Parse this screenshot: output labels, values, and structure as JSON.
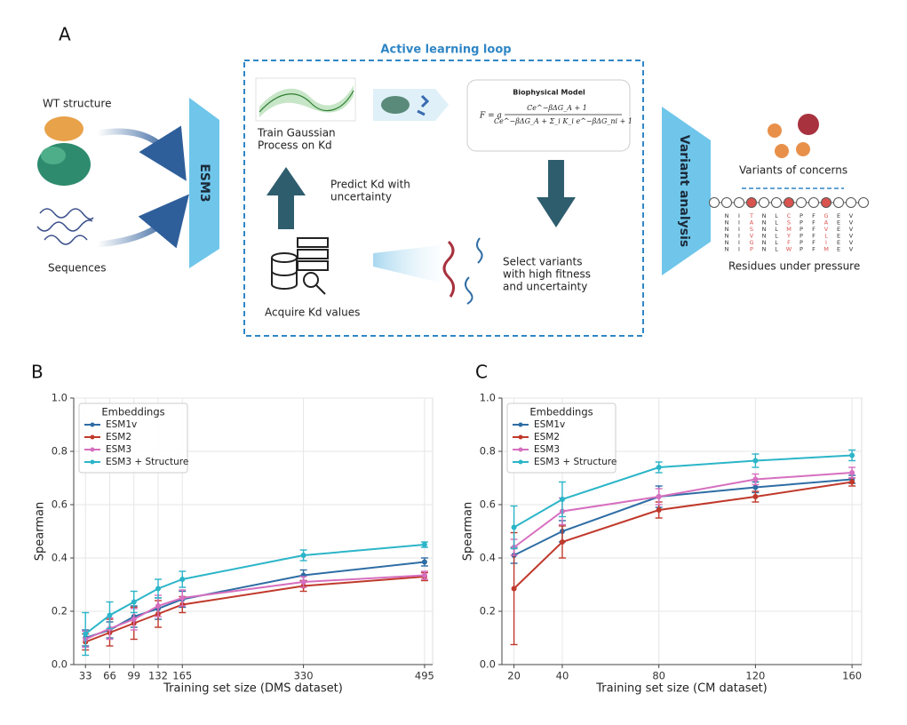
{
  "panel_a": {
    "label": "A",
    "loop_title": "Active learning loop",
    "wt_structure": "WT structure",
    "sequences": "Sequences",
    "esm3": "ESM3",
    "train_gp": [
      "Train Gaussian",
      "Process on Kd"
    ],
    "biophysical_model": "Biophysical Model",
    "formula": {
      "lhs": "F = a",
      "numerator": "Ce^−βΔG_A + 1",
      "denominator": "Ce^−βΔG_A + Σ_i K_i e^−βΔG_ni + 1"
    },
    "predict": [
      "Predict Kd with",
      "uncertainty"
    ],
    "acquire": "Acquire Kd values",
    "select": [
      "Select variants",
      "with high fitness",
      "and uncertainty"
    ],
    "variant_analysis": "Variant analysis",
    "variants_of_concern": "Variants of concerns",
    "residues_under_pressure": "Residues under pressure",
    "residue_columns": [
      {
        "letters": [
          "N",
          "N",
          "N",
          "N",
          "N",
          "N"
        ],
        "color": "#333333"
      },
      {
        "letters": [
          "I",
          "I",
          "I",
          "I",
          "I",
          "I"
        ],
        "color": "#333333"
      },
      {
        "letters": [
          "T",
          "A",
          "S",
          "V",
          "G",
          "P"
        ],
        "color": "#d9534f"
      },
      {
        "letters": [
          "N",
          "N",
          "N",
          "N",
          "N",
          "N"
        ],
        "color": "#333333"
      },
      {
        "letters": [
          "L",
          "L",
          "L",
          "L",
          "L",
          "L"
        ],
        "color": "#333333"
      },
      {
        "letters": [
          "C",
          "S",
          "M",
          "Y",
          "F",
          "W"
        ],
        "color": "#d9534f"
      },
      {
        "letters": [
          "P",
          "P",
          "P",
          "P",
          "P",
          "P"
        ],
        "color": "#333333"
      },
      {
        "letters": [
          "F",
          "F",
          "F",
          "F",
          "F",
          "F"
        ],
        "color": "#333333"
      },
      {
        "letters": [
          "G",
          "A",
          "V",
          "L",
          "I",
          "M"
        ],
        "color": "#d9534f"
      },
      {
        "letters": [
          "E",
          "E",
          "E",
          "E",
          "E",
          "E"
        ],
        "color": "#333333"
      },
      {
        "letters": [
          "V",
          "V",
          "V",
          "V",
          "V",
          "V"
        ],
        "color": "#333333"
      }
    ]
  },
  "chart_data": [
    {
      "type": "line",
      "label": "B",
      "x_label": "Training set size (DMS dataset)",
      "y_label": "Spearman",
      "legend_title": "Embeddings",
      "legend": "upper left",
      "grid": true,
      "x": [
        33,
        66,
        99,
        132,
        165,
        330,
        495
      ],
      "xlim": [
        17,
        506
      ],
      "xticks": [
        33,
        66,
        99,
        132,
        165,
        330,
        495
      ],
      "ylim": [
        0,
        1
      ],
      "yticks": [
        {
          "value": 0,
          "label": "0.0"
        },
        {
          "value": 0.2,
          "label": "0.2"
        },
        {
          "value": 0.4,
          "label": "0.4"
        },
        {
          "value": 0.6,
          "label": "0.6"
        },
        {
          "value": 0.8,
          "label": "0.8"
        },
        {
          "value": 1,
          "label": "1.0"
        }
      ],
      "series": [
        {
          "name": "ESM1v",
          "color": "#2e6da4",
          "values": [
            0.1,
            0.13,
            0.18,
            0.21,
            0.245,
            0.335,
            0.385
          ],
          "errors": [
            0.03,
            0.03,
            0.04,
            0.04,
            0.03,
            0.02,
            0.015
          ]
        },
        {
          "name": "ESM2",
          "color": "#c0392b",
          "values": [
            0.085,
            0.12,
            0.155,
            0.19,
            0.225,
            0.295,
            0.33
          ],
          "errors": [
            0.03,
            0.05,
            0.06,
            0.05,
            0.03,
            0.02,
            0.015
          ]
        },
        {
          "name": "ESM3",
          "color": "#d66fbf",
          "values": [
            0.095,
            0.135,
            0.17,
            0.22,
            0.25,
            0.31,
            0.335
          ],
          "errors": [
            0.03,
            0.04,
            0.04,
            0.04,
            0.03,
            0.02,
            0.015
          ]
        },
        {
          "name": "ESM3 + Structure",
          "color": "#2bb5c8",
          "values": [
            0.115,
            0.185,
            0.235,
            0.285,
            0.32,
            0.41,
            0.45
          ],
          "errors": [
            0.08,
            0.05,
            0.04,
            0.035,
            0.03,
            0.02,
            0.01
          ]
        }
      ]
    },
    {
      "type": "line",
      "label": "C",
      "x_label": "Training set size (CM dataset)",
      "y_label": "Spearman",
      "legend_title": "Embeddings",
      "legend": "upper left",
      "grid": true,
      "x": [
        20,
        40,
        80,
        120,
        160
      ],
      "xlim": [
        15,
        164
      ],
      "xticks": [
        20,
        40,
        80,
        120,
        160
      ],
      "ylim": [
        0,
        1
      ],
      "yticks": [
        {
          "value": 0,
          "label": "0.0"
        },
        {
          "value": 0.2,
          "label": "0.2"
        },
        {
          "value": 0.4,
          "label": "0.4"
        },
        {
          "value": 0.6,
          "label": "0.6"
        },
        {
          "value": 0.8,
          "label": "0.8"
        },
        {
          "value": 1,
          "label": "1.0"
        }
      ],
      "series": [
        {
          "name": "ESM1v",
          "color": "#2e6da4",
          "values": [
            0.41,
            0.5,
            0.63,
            0.665,
            0.695
          ],
          "errors": [
            0.03,
            0.04,
            0.04,
            0.02,
            0.015
          ]
        },
        {
          "name": "ESM2",
          "color": "#c0392b",
          "values": [
            0.285,
            0.46,
            0.58,
            0.63,
            0.685
          ],
          "errors": [
            0.21,
            0.06,
            0.03,
            0.02,
            0.015
          ]
        },
        {
          "name": "ESM3",
          "color": "#d66fbf",
          "values": [
            0.44,
            0.575,
            0.63,
            0.695,
            0.72
          ],
          "errors": [
            0.03,
            0.05,
            0.03,
            0.02,
            0.02
          ]
        },
        {
          "name": "ESM3 + Structure",
          "color": "#2bb5c8",
          "values": [
            0.515,
            0.62,
            0.74,
            0.765,
            0.785
          ],
          "errors": [
            0.08,
            0.065,
            0.02,
            0.025,
            0.02
          ]
        }
      ]
    }
  ]
}
